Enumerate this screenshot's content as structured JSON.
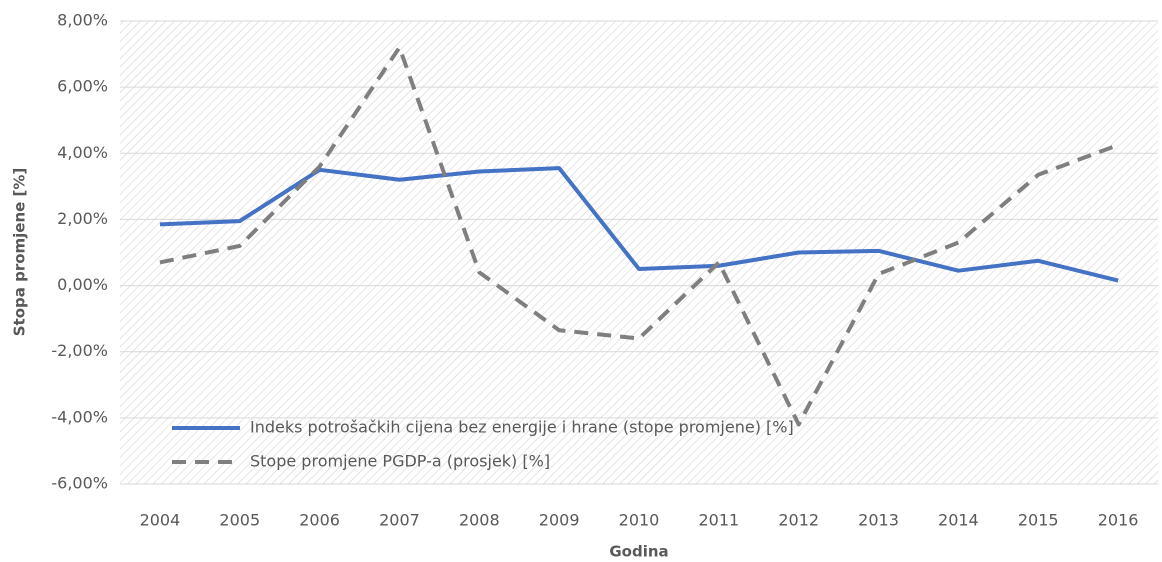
{
  "chart_data": {
    "type": "line",
    "x_label": "Godina",
    "y_label": "Stopa promjene [%]",
    "categories": [
      "2004",
      "2005",
      "2006",
      "2007",
      "2008",
      "2009",
      "2010",
      "2011",
      "2012",
      "2013",
      "2014",
      "2015",
      "2016"
    ],
    "series": [
      {
        "name": "Indeks potrošačkih cijena bez energije i hrane (stope promjene) [%]",
        "color": "#4472c4",
        "dash": false,
        "values": [
          1.85,
          1.95,
          3.5,
          3.2,
          3.45,
          3.55,
          0.5,
          0.6,
          1.0,
          1.05,
          0.45,
          0.75,
          0.15
        ]
      },
      {
        "name": "Stope promjene PGDP-a (prosjek) [%]",
        "color": "#7f7f7f",
        "dash": true,
        "values": [
          0.7,
          1.2,
          3.6,
          7.2,
          0.4,
          -1.35,
          -1.6,
          0.7,
          -4.2,
          0.35,
          1.3,
          3.35,
          4.25
        ]
      }
    ],
    "ylim": [
      -6,
      8
    ],
    "yticks": [
      {
        "value": -6,
        "label": "-6,00%"
      },
      {
        "value": -4,
        "label": "-4,00%"
      },
      {
        "value": -2,
        "label": "-2,00%"
      },
      {
        "value": 0,
        "label": "0,00%"
      },
      {
        "value": 2,
        "label": "2,00%"
      },
      {
        "value": 4,
        "label": "4,00%"
      },
      {
        "value": 6,
        "label": "6,00%"
      },
      {
        "value": 8,
        "label": "8,00%"
      }
    ],
    "grid": true,
    "legend": "lower left"
  }
}
